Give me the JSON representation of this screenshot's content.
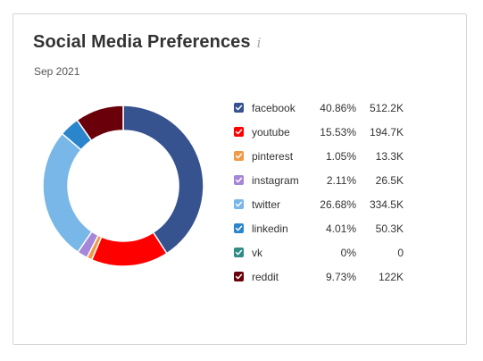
{
  "header": {
    "title": "Social Media Preferences",
    "info_icon": "info-icon",
    "date": "Sep 2021"
  },
  "chart_data": {
    "type": "pie",
    "donut": true,
    "title": "Social Media Preferences",
    "subtitle": "Sep 2021",
    "legend_position": "right",
    "slices": [
      {
        "name": "facebook",
        "percent": 40.86,
        "percent_label": "40.86%",
        "value_label": "512.2K",
        "color": "#36528f"
      },
      {
        "name": "youtube",
        "percent": 15.53,
        "percent_label": "15.53%",
        "value_label": "194.7K",
        "color": "#ff0000"
      },
      {
        "name": "pinterest",
        "percent": 1.05,
        "percent_label": "1.05%",
        "value_label": "13.3K",
        "color": "#f09947"
      },
      {
        "name": "instagram",
        "percent": 2.11,
        "percent_label": "2.11%",
        "value_label": "26.5K",
        "color": "#a686d8"
      },
      {
        "name": "twitter",
        "percent": 26.68,
        "percent_label": "26.68%",
        "value_label": "334.5K",
        "color": "#78b7e8"
      },
      {
        "name": "linkedin",
        "percent": 4.01,
        "percent_label": "4.01%",
        "value_label": "50.3K",
        "color": "#2b85cc"
      },
      {
        "name": "vk",
        "percent": 0,
        "percent_label": "0%",
        "value_label": "0",
        "color": "#2f8c87"
      },
      {
        "name": "reddit",
        "percent": 9.73,
        "percent_label": "9.73%",
        "value_label": "122K",
        "color": "#6a0009"
      }
    ]
  }
}
